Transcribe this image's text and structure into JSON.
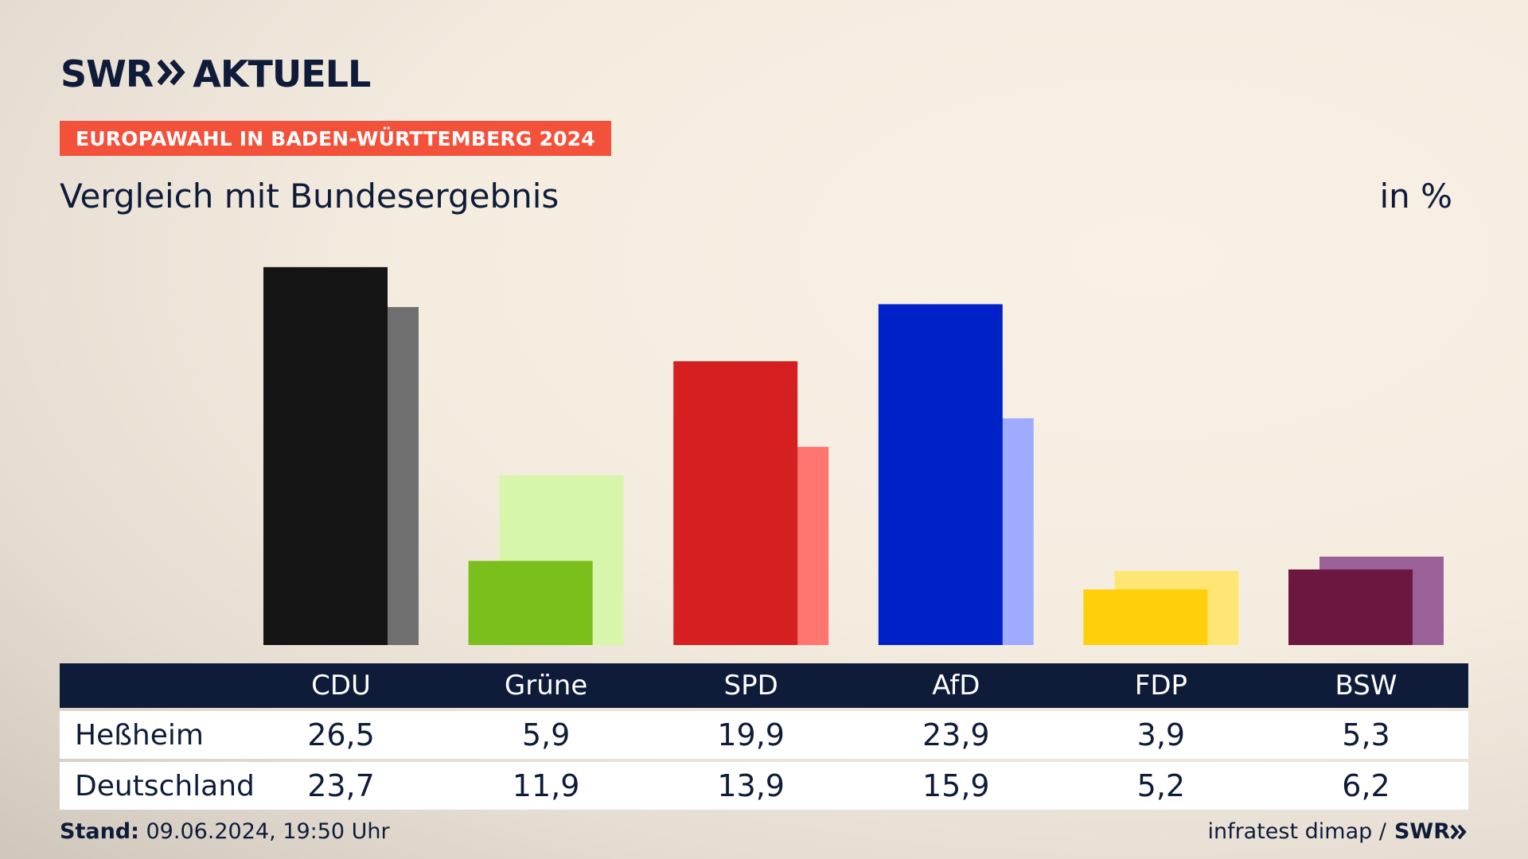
{
  "brand": {
    "logo_text_left": "SWR",
    "logo_text_right": "AKTUELL",
    "small_logo": "SWR"
  },
  "badge": "EUROPAWAHL IN BADEN-WÜRTTEMBERG 2024",
  "subtitle": "Vergleich mit Bundesergebnis",
  "unit": "in %",
  "footer": {
    "stand_label": "Stand:",
    "stand_value": " 09.06.2024, 19:50 Uhr",
    "source": "infratest dimap /"
  },
  "chart_data": {
    "type": "bar",
    "categories": [
      "CDU",
      "Grüne",
      "SPD",
      "AfD",
      "FDP",
      "BSW"
    ],
    "series": [
      {
        "name": "Heßheim",
        "values": [
          26.5,
          5.9,
          19.9,
          23.9,
          3.9,
          5.3
        ]
      },
      {
        "name": "Deutschland",
        "values": [
          23.7,
          11.9,
          13.9,
          15.9,
          5.2,
          6.2
        ]
      }
    ],
    "value_labels": [
      [
        "26,5",
        "5,9",
        "19,9",
        "23,9",
        "3,9",
        "5,3"
      ],
      [
        "23,7",
        "11,9",
        "13,9",
        "15,9",
        "5,2",
        "6,2"
      ]
    ],
    "colors_primary": [
      "#141414",
      "#7abf1c",
      "#d61f20",
      "#0021c8",
      "#ffcf0c",
      "#6c173f"
    ],
    "colors_secondary": [
      "#707070",
      "#d8f6ab",
      "#ff7671",
      "#9eabff",
      "#ffe574",
      "#9b6097"
    ]
  }
}
